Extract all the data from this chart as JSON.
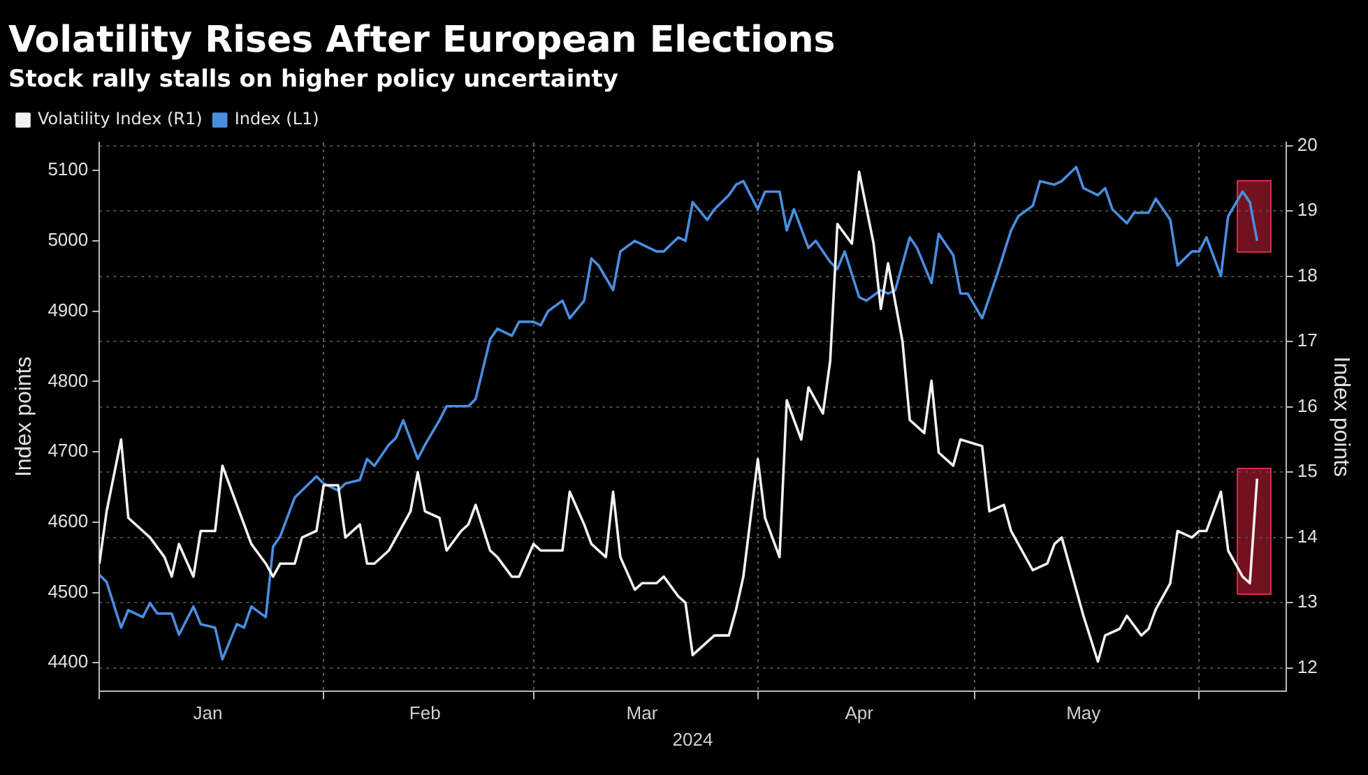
{
  "chart_data": {
    "type": "line",
    "title": "Volatility Rises After European Elections",
    "subtitle": "Stock rally stalls on higher policy uncertainty",
    "xlabel": "2024",
    "ylabel": "Index points",
    "y2label": "Index points",
    "xlim": [
      "2024-01-01",
      "2024-06-13"
    ],
    "xticks": [
      {
        "value": "2024-01-01",
        "label": null
      },
      {
        "value": "2024-01-16",
        "label": "Jan"
      },
      {
        "value": "2024-02-01",
        "label": null
      },
      {
        "value": "2024-02-15",
        "label": "Feb"
      },
      {
        "value": "2024-03-01",
        "label": null
      },
      {
        "value": "2024-03-16",
        "label": "Mar"
      },
      {
        "value": "2024-04-01",
        "label": null
      },
      {
        "value": "2024-04-15",
        "label": "Apr"
      },
      {
        "value": "2024-05-01",
        "label": null
      },
      {
        "value": "2024-05-16",
        "label": "May"
      },
      {
        "value": "2024-06-01",
        "label": null
      }
    ],
    "ylim": [
      4360,
      5140
    ],
    "yticks": [
      4400,
      4500,
      4600,
      4700,
      4800,
      4900,
      5000,
      5100
    ],
    "y2lim": [
      11.65,
      20.05
    ],
    "y2ticks": [
      12,
      13,
      14,
      15,
      16,
      17,
      18,
      19,
      20
    ],
    "grid": true,
    "legend": "top left",
    "marker": "none",
    "line_style": "solid",
    "series": [
      {
        "name": "Volatility Index (R1)",
        "color": "#f2f2f2",
        "axis": "y2",
        "x": [
          "2024-01-01",
          "2024-01-02",
          "2024-01-04",
          "2024-01-05",
          "2024-01-07",
          "2024-01-08",
          "2024-01-10",
          "2024-01-11",
          "2024-01-12",
          "2024-01-14",
          "2024-01-15",
          "2024-01-17",
          "2024-01-18",
          "2024-01-20",
          "2024-01-21",
          "2024-01-22",
          "2024-01-24",
          "2024-01-25",
          "2024-01-26",
          "2024-01-28",
          "2024-01-29",
          "2024-01-31",
          "2024-02-01",
          "2024-02-03",
          "2024-02-04",
          "2024-02-06",
          "2024-02-07",
          "2024-02-08",
          "2024-02-10",
          "2024-02-11",
          "2024-02-13",
          "2024-02-14",
          "2024-02-15",
          "2024-02-17",
          "2024-02-18",
          "2024-02-20",
          "2024-02-21",
          "2024-02-22",
          "2024-02-24",
          "2024-02-25",
          "2024-02-27",
          "2024-02-28",
          "2024-03-01",
          "2024-03-02",
          "2024-03-03",
          "2024-03-05",
          "2024-03-06",
          "2024-03-08",
          "2024-03-09",
          "2024-03-11",
          "2024-03-12",
          "2024-03-13",
          "2024-03-15",
          "2024-03-16",
          "2024-03-18",
          "2024-03-19",
          "2024-03-21",
          "2024-03-22",
          "2024-03-23",
          "2024-03-25",
          "2024-03-26",
          "2024-03-28",
          "2024-03-29",
          "2024-03-30",
          "2024-04-01",
          "2024-04-02",
          "2024-04-04",
          "2024-04-05",
          "2024-04-07",
          "2024-04-08",
          "2024-04-10",
          "2024-04-11",
          "2024-04-12",
          "2024-04-14",
          "2024-04-15",
          "2024-04-17",
          "2024-04-18",
          "2024-04-19",
          "2024-04-21",
          "2024-04-22",
          "2024-04-24",
          "2024-04-25",
          "2024-04-26",
          "2024-04-28",
          "2024-04-29",
          "2024-05-02",
          "2024-05-03",
          "2024-05-05",
          "2024-05-06",
          "2024-05-08",
          "2024-05-09",
          "2024-05-11",
          "2024-05-12",
          "2024-05-13",
          "2024-05-15",
          "2024-05-16",
          "2024-05-18",
          "2024-05-19",
          "2024-05-21",
          "2024-05-22",
          "2024-05-24",
          "2024-05-25",
          "2024-05-26",
          "2024-05-28",
          "2024-05-29",
          "2024-05-31",
          "2024-06-01",
          "2024-06-02",
          "2024-06-04",
          "2024-06-05",
          "2024-06-07",
          "2024-06-08",
          "2024-06-09"
        ],
        "values": [
          13.6,
          14.4,
          15.5,
          14.3,
          14.1,
          14.0,
          13.7,
          13.4,
          13.9,
          13.4,
          14.1,
          14.1,
          15.1,
          14.5,
          14.2,
          13.9,
          13.6,
          13.4,
          13.6,
          13.6,
          14.0,
          14.1,
          14.8,
          14.8,
          14.0,
          14.2,
          13.6,
          13.6,
          13.8,
          14.0,
          14.4,
          15.0,
          14.4,
          14.3,
          13.8,
          14.1,
          14.2,
          14.5,
          13.8,
          13.7,
          13.4,
          13.4,
          13.9,
          13.8,
          13.8,
          13.8,
          14.7,
          14.2,
          13.9,
          13.7,
          14.7,
          13.7,
          13.2,
          13.3,
          13.3,
          13.4,
          13.1,
          13.0,
          12.2,
          12.4,
          12.5,
          12.5,
          12.9,
          13.4,
          15.2,
          14.3,
          13.7,
          16.1,
          15.5,
          16.3,
          15.9,
          16.7,
          18.8,
          18.5,
          19.6,
          18.5,
          17.5,
          18.2,
          17.0,
          15.8,
          15.6,
          16.4,
          15.3,
          15.1,
          15.5,
          15.4,
          14.4,
          14.5,
          14.1,
          13.7,
          13.5,
          13.6,
          13.9,
          14.0,
          13.2,
          12.8,
          12.1,
          12.5,
          12.6,
          12.8,
          12.5,
          12.6,
          12.9,
          13.3,
          14.1,
          14.0,
          14.1,
          14.1,
          14.7,
          13.8,
          13.4,
          13.3,
          14.9
        ]
      },
      {
        "name": "Index (L1)",
        "color": "#4a8ee0",
        "x": [
          "2024-01-01",
          "2024-01-02",
          "2024-01-04",
          "2024-01-05",
          "2024-01-07",
          "2024-01-08",
          "2024-01-09",
          "2024-01-11",
          "2024-01-12",
          "2024-01-14",
          "2024-01-15",
          "2024-01-17",
          "2024-01-18",
          "2024-01-20",
          "2024-01-21",
          "2024-01-22",
          "2024-01-24",
          "2024-01-25",
          "2024-01-26",
          "2024-01-28",
          "2024-01-29",
          "2024-01-31",
          "2024-02-01",
          "2024-02-03",
          "2024-02-04",
          "2024-02-06",
          "2024-02-07",
          "2024-02-08",
          "2024-02-10",
          "2024-02-11",
          "2024-02-12",
          "2024-02-14",
          "2024-02-15",
          "2024-02-17",
          "2024-02-18",
          "2024-02-20",
          "2024-02-21",
          "2024-02-22",
          "2024-02-24",
          "2024-02-25",
          "2024-02-27",
          "2024-02-28",
          "2024-03-01",
          "2024-03-02",
          "2024-03-03",
          "2024-03-05",
          "2024-03-06",
          "2024-03-08",
          "2024-03-09",
          "2024-03-10",
          "2024-03-12",
          "2024-03-13",
          "2024-03-15",
          "2024-03-16",
          "2024-03-18",
          "2024-03-19",
          "2024-03-21",
          "2024-03-22",
          "2024-03-23",
          "2024-03-25",
          "2024-03-26",
          "2024-03-28",
          "2024-03-29",
          "2024-03-30",
          "2024-04-01",
          "2024-04-02",
          "2024-04-04",
          "2024-04-05",
          "2024-04-06",
          "2024-04-08",
          "2024-04-09",
          "2024-04-11",
          "2024-04-12",
          "2024-04-13",
          "2024-04-15",
          "2024-04-16",
          "2024-04-18",
          "2024-04-19",
          "2024-04-20",
          "2024-04-22",
          "2024-04-23",
          "2024-04-25",
          "2024-04-26",
          "2024-04-28",
          "2024-04-29",
          "2024-04-30",
          "2024-05-02",
          "2024-05-03",
          "2024-05-04",
          "2024-05-06",
          "2024-05-07",
          "2024-05-09",
          "2024-05-10",
          "2024-05-12",
          "2024-05-13",
          "2024-05-15",
          "2024-05-16",
          "2024-05-18",
          "2024-05-19",
          "2024-05-20",
          "2024-05-22",
          "2024-05-23",
          "2024-05-25",
          "2024-05-26",
          "2024-05-28",
          "2024-05-29",
          "2024-05-31",
          "2024-06-01",
          "2024-06-02",
          "2024-06-04",
          "2024-06-05",
          "2024-06-07",
          "2024-06-08",
          "2024-06-09"
        ],
        "values": [
          4525,
          4515,
          4450,
          4475,
          4465,
          4485,
          4470,
          4470,
          4440,
          4480,
          4455,
          4450,
          4405,
          4455,
          4450,
          4480,
          4465,
          4565,
          4580,
          4635,
          4645,
          4665,
          4655,
          4645,
          4655,
          4660,
          4690,
          4680,
          4710,
          4720,
          4745,
          4690,
          4710,
          4745,
          4765,
          4765,
          4765,
          4775,
          4860,
          4875,
          4865,
          4885,
          4885,
          4880,
          4900,
          4915,
          4890,
          4915,
          4975,
          4965,
          4930,
          4985,
          5000,
          4995,
          4985,
          4985,
          5005,
          5000,
          5055,
          5030,
          5045,
          5065,
          5080,
          5085,
          5045,
          5070,
          5070,
          5015,
          5045,
          4990,
          5000,
          4970,
          4960,
          4985,
          4920,
          4915,
          4930,
          4925,
          4930,
          5005,
          4990,
          4940,
          5010,
          4980,
          4925,
          4925,
          4890,
          4920,
          4950,
          5015,
          5035,
          5050,
          5085,
          5080,
          5085,
          5105,
          5075,
          5065,
          5075,
          5045,
          5025,
          5040,
          5040,
          5060,
          5030,
          4965,
          4985,
          4985,
          5005,
          4950,
          5035,
          5070,
          5055,
          5000
        ]
      }
    ]
  }
}
